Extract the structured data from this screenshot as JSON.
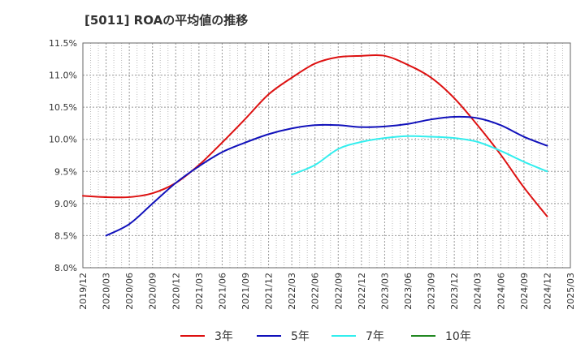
{
  "chart_data": {
    "type": "line",
    "title": "[5011]  ROAの平均値の推移",
    "xlabel": "",
    "ylabel": "",
    "x": [
      "2019/12",
      "2020/03",
      "2020/06",
      "2020/09",
      "2020/12",
      "2021/03",
      "2021/06",
      "2021/09",
      "2021/12",
      "2022/03",
      "2022/06",
      "2022/09",
      "2022/12",
      "2023/03",
      "2023/06",
      "2023/09",
      "2023/12",
      "2024/03",
      "2024/06",
      "2024/09",
      "2024/12",
      "2025/03"
    ],
    "y_ticks": [
      "8.0%",
      "8.5%",
      "9.0%",
      "9.5%",
      "10.0%",
      "10.5%",
      "11.0%",
      "11.5%"
    ],
    "ylim": [
      8.0,
      11.5
    ],
    "grid": true,
    "legend_position": "bottom",
    "series": [
      {
        "name": "3年",
        "color": "#dd1111",
        "values": [
          9.12,
          9.1,
          9.1,
          9.16,
          9.32,
          9.6,
          9.95,
          10.32,
          10.7,
          10.96,
          11.18,
          11.28,
          11.3,
          11.3,
          11.16,
          10.96,
          10.64,
          10.22,
          9.76,
          9.25,
          8.8,
          null
        ]
      },
      {
        "name": "5年",
        "color": "#1111bb",
        "values": [
          null,
          8.5,
          8.68,
          9.0,
          9.32,
          9.58,
          9.8,
          9.95,
          10.08,
          10.17,
          10.22,
          10.22,
          10.19,
          10.2,
          10.24,
          10.31,
          10.35,
          10.33,
          10.22,
          10.04,
          9.9,
          null
        ]
      },
      {
        "name": "7年",
        "color": "#33eeee",
        "values": [
          null,
          null,
          null,
          null,
          null,
          null,
          null,
          null,
          null,
          9.45,
          9.6,
          9.85,
          9.96,
          10.02,
          10.05,
          10.04,
          10.02,
          9.96,
          9.82,
          9.65,
          9.5,
          null
        ]
      },
      {
        "name": "10年",
        "color": "#228822",
        "values": [
          null,
          null,
          null,
          null,
          null,
          null,
          null,
          null,
          null,
          null,
          null,
          null,
          null,
          null,
          null,
          null,
          null,
          null,
          null,
          null,
          null,
          null
        ]
      }
    ]
  }
}
